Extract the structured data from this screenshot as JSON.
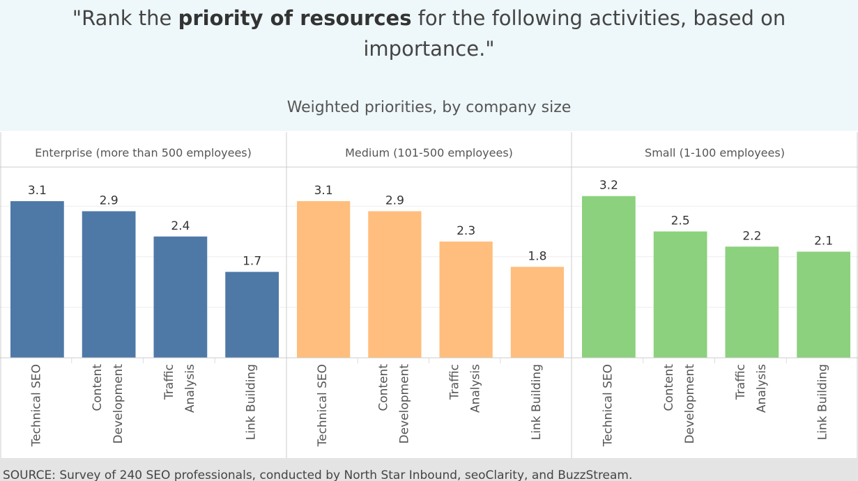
{
  "title": {
    "prefix": "\"Rank the ",
    "bold": "priority of resources",
    "suffix": " for the following activities, based on importance.\""
  },
  "subtitle": "Weighted priorities, by company size",
  "footer": "SOURCE:  Survey of 240 SEO professionals, conducted by North Star Inbound, seoClarity, and BuzzStream.",
  "chart_data": {
    "type": "bar",
    "categories": [
      "Technical SEO",
      "Content Development",
      "Traffic Analysis",
      "Link Building"
    ],
    "category_lines": [
      [
        "Technical SEO"
      ],
      [
        "Content",
        "Development"
      ],
      [
        "Traffic",
        "Analysis"
      ],
      [
        "Link Building"
      ]
    ],
    "ylim": [
      0,
      3.75
    ],
    "grid": true,
    "panels": [
      {
        "name": "Enterprise (more than 500 employees)",
        "color": "#4e79a7",
        "values": [
          3.1,
          2.9,
          2.4,
          1.7
        ]
      },
      {
        "name": "Medium (101-500 employees)",
        "color": "#ffbe7d",
        "values": [
          3.1,
          2.9,
          2.3,
          1.8
        ]
      },
      {
        "name": "Small (1-100 employees)",
        "color": "#8cd17d",
        "values": [
          3.2,
          2.5,
          2.2,
          2.1
        ]
      }
    ]
  }
}
